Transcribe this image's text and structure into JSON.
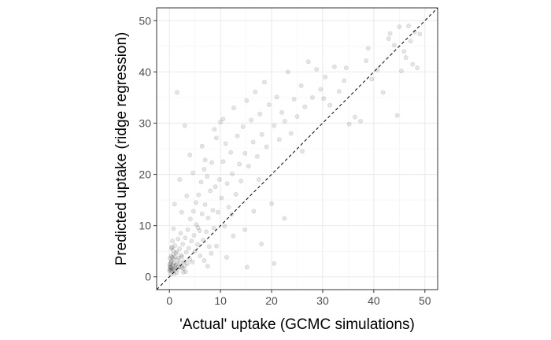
{
  "chart_data": {
    "type": "scatter",
    "title": "",
    "xlabel": "'Actual' uptake (GCMC simulations)",
    "ylabel": "Predicted uptake (ridge regression)",
    "xlim": [
      -2.5,
      52.5
    ],
    "ylim": [
      -2.5,
      52.5
    ],
    "xticks": [
      0,
      10,
      20,
      30,
      40,
      50
    ],
    "yticks": [
      0,
      10,
      20,
      30,
      40,
      50
    ],
    "grid": true,
    "reference_line": {
      "type": "identity",
      "style": "dashed",
      "label": ""
    },
    "point_color": "#000000",
    "point_opacity": 0.1,
    "points": [
      [
        0,
        1.2
      ],
      [
        0.1,
        1.5
      ],
      [
        0.2,
        1.3
      ],
      [
        0.1,
        2.0
      ],
      [
        0.3,
        1.8
      ],
      [
        0.2,
        2.6
      ],
      [
        0.4,
        3.1
      ],
      [
        0.5,
        1.4
      ],
      [
        0.6,
        2.2
      ],
      [
        0.3,
        4.0
      ],
      [
        0.7,
        5.2
      ],
      [
        0.8,
        1.6
      ],
      [
        0.9,
        3.5
      ],
      [
        1.0,
        2.1
      ],
      [
        0.5,
        5.8
      ],
      [
        1.2,
        1.7
      ],
      [
        1.3,
        4.6
      ],
      [
        1.5,
        2.5
      ],
      [
        1.6,
        3.3
      ],
      [
        1.8,
        1.9
      ],
      [
        2.0,
        5.5
      ],
      [
        2.1,
        2.8
      ],
      [
        2.3,
        4.2
      ],
      [
        2.5,
        1.8
      ],
      [
        2.6,
        6.4
      ],
      [
        2.8,
        3.0
      ],
      [
        3.0,
        2.2
      ],
      [
        3.1,
        7.6
      ],
      [
        3.3,
        4.8
      ],
      [
        3.5,
        2.6
      ],
      [
        3.6,
        9.2
      ],
      [
        3.8,
        5.6
      ],
      [
        4.0,
        3.4
      ],
      [
        4.1,
        11.3
      ],
      [
        4.3,
        7.0
      ],
      [
        4.5,
        2.9
      ],
      [
        4.7,
        12.8
      ],
      [
        4.8,
        8.1
      ],
      [
        5.0,
        5.0
      ],
      [
        5.2,
        14.5
      ],
      [
        5.3,
        10.2
      ],
      [
        5.5,
        6.3
      ],
      [
        5.7,
        16.0
      ],
      [
        5.9,
        9.0
      ],
      [
        6.0,
        4.1
      ],
      [
        6.2,
        18.5
      ],
      [
        6.4,
        12.3
      ],
      [
        6.6,
        7.2
      ],
      [
        6.8,
        21.0
      ],
      [
        7.0,
        14.1
      ],
      [
        7.2,
        8.8
      ],
      [
        7.4,
        19.6
      ],
      [
        7.6,
        11.5
      ],
      [
        7.8,
        5.9
      ],
      [
        8.0,
        16.8
      ],
      [
        8.3,
        22.3
      ],
      [
        8.5,
        13.0
      ],
      [
        8.7,
        9.5
      ],
      [
        9.0,
        17.6
      ],
      [
        9.2,
        27.1
      ],
      [
        9.5,
        12.6
      ],
      [
        9.8,
        19.0
      ],
      [
        10.0,
        30.2
      ],
      [
        10.2,
        15.4
      ],
      [
        10.5,
        22.5
      ],
      [
        10.8,
        9.9
      ],
      [
        11.0,
        26.0
      ],
      [
        11.3,
        18.2
      ],
      [
        11.6,
        13.6
      ],
      [
        12.0,
        24.3
      ],
      [
        12.3,
        20.1
      ],
      [
        12.6,
        33.0
      ],
      [
        13.0,
        16.1
      ],
      [
        13.3,
        27.5
      ],
      [
        13.7,
        22.0
      ],
      [
        14.0,
        18.7
      ],
      [
        14.4,
        29.3
      ],
      [
        14.8,
        24.1
      ],
      [
        15.1,
        34.4
      ],
      [
        15.5,
        21.6
      ],
      [
        16.0,
        30.6
      ],
      [
        16.4,
        26.3
      ],
      [
        16.8,
        36.1
      ],
      [
        17.2,
        23.5
      ],
      [
        17.7,
        31.8
      ],
      [
        18.1,
        27.8
      ],
      [
        18.6,
        38.0
      ],
      [
        19.0,
        25.4
      ],
      [
        19.5,
        33.6
      ],
      [
        20.0,
        14.3
      ],
      [
        20.5,
        29.5
      ],
      [
        21.0,
        35.1
      ],
      [
        21.5,
        26.8
      ],
      [
        22.0,
        32.1
      ],
      [
        22.6,
        30.4
      ],
      [
        23.2,
        40.0
      ],
      [
        23.8,
        28.0
      ],
      [
        24.4,
        34.7
      ],
      [
        25.0,
        31.3
      ],
      [
        25.8,
        37.3
      ],
      [
        26.5,
        33.2
      ],
      [
        27.2,
        42.0
      ],
      [
        28.0,
        35.0
      ],
      [
        28.8,
        40.5
      ],
      [
        29.6,
        36.6
      ],
      [
        30.5,
        39.0
      ],
      [
        31.4,
        33.5
      ],
      [
        32.3,
        41.0
      ],
      [
        33.2,
        36.2
      ],
      [
        34.2,
        38.3
      ],
      [
        35.2,
        29.8
      ],
      [
        36.3,
        31.2
      ],
      [
        37.4,
        30.4
      ],
      [
        38.5,
        42.2
      ],
      [
        39.6,
        38.6
      ],
      [
        40.7,
        40.4
      ],
      [
        41.8,
        36.0
      ],
      [
        42.9,
        46.5
      ],
      [
        44.0,
        45.2
      ],
      [
        44.6,
        31.5
      ],
      [
        45.0,
        48.8
      ],
      [
        45.4,
        40.2
      ],
      [
        45.9,
        44.0
      ],
      [
        46.3,
        42.8
      ],
      [
        46.8,
        49.0
      ],
      [
        47.2,
        46.0
      ],
      [
        47.6,
        41.5
      ],
      [
        48.0,
        47.8
      ],
      [
        48.5,
        40.8
      ],
      [
        49.0,
        47.4
      ],
      [
        1.5,
        36.0
      ],
      [
        3.0,
        29.5
      ],
      [
        4.0,
        23.8
      ],
      [
        2.0,
        19.0
      ],
      [
        1.0,
        14.2
      ],
      [
        0.8,
        9.4
      ],
      [
        2.4,
        12.6
      ],
      [
        3.4,
        15.8
      ],
      [
        4.6,
        20.3
      ],
      [
        6.4,
        25.5
      ],
      [
        8.8,
        28.8
      ],
      [
        10.5,
        30.8
      ],
      [
        7.0,
        22.8
      ],
      [
        5.6,
        9.6
      ],
      [
        9.2,
        6.0
      ],
      [
        11.2,
        3.8
      ],
      [
        12.5,
        8.0
      ],
      [
        15.2,
        1.9
      ],
      [
        18.0,
        6.4
      ],
      [
        20.5,
        2.6
      ],
      [
        22.5,
        11.4
      ],
      [
        26.0,
        24.5
      ],
      [
        30.2,
        34.8
      ],
      [
        34.6,
        40.8
      ],
      [
        38.9,
        44.6
      ],
      [
        43.2,
        47.5
      ],
      [
        12.2,
        12.2
      ],
      [
        14.8,
        9.2
      ],
      [
        16.5,
        12.8
      ],
      [
        17.5,
        19.0
      ],
      [
        6.8,
        3.2
      ],
      [
        7.5,
        2.1
      ],
      [
        8.2,
        4.6
      ],
      [
        3.2,
        1.0
      ],
      [
        2.7,
        0.9
      ],
      [
        1.4,
        0.8
      ],
      [
        0.9,
        0.6
      ],
      [
        0.2,
        0.5
      ],
      [
        1.1,
        6.1
      ],
      [
        1.7,
        7.4
      ],
      [
        2.2,
        8.5
      ],
      [
        0.6,
        7.0
      ],
      [
        0.4,
        5.6
      ],
      [
        0.15,
        3.6
      ],
      [
        0.35,
        2.9
      ],
      [
        0.05,
        2.4
      ],
      [
        0.25,
        1.9
      ],
      [
        0.45,
        1.1
      ],
      [
        0.55,
        3.8
      ],
      [
        0.75,
        4.4
      ],
      [
        0.85,
        2.7
      ],
      [
        0.95,
        1.3
      ],
      [
        1.05,
        3.9
      ],
      [
        1.25,
        2.4
      ],
      [
        1.45,
        4.9
      ],
      [
        1.65,
        1.5
      ],
      [
        1.85,
        3.7
      ],
      [
        2.15,
        2.0
      ],
      [
        2.45,
        3.9
      ],
      [
        2.75,
        1.6
      ]
    ]
  }
}
